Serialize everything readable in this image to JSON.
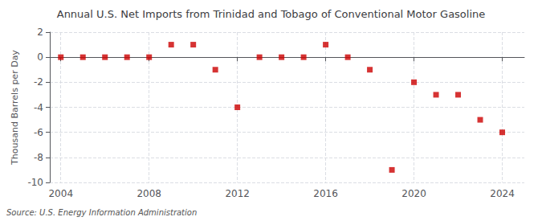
{
  "chart_data": {
    "type": "scatter",
    "title": "Annual U.S. Net Imports from Trinidad and Tobago of Conventional Motor Gasoline",
    "ylabel": "Thousand Barrels per Day",
    "annotation": "Source: U.S. Energy Information Administration",
    "x": [
      2004,
      2005,
      2006,
      2007,
      2008,
      2009,
      2010,
      2011,
      2012,
      2013,
      2014,
      2015,
      2016,
      2017,
      2018,
      2019,
      2020,
      2021,
      2022,
      2023,
      2024
    ],
    "values": [
      0,
      0,
      0,
      0,
      0,
      1,
      1,
      -1,
      -4,
      0,
      0,
      0,
      1,
      0,
      -1,
      -9,
      -2,
      -3,
      -3,
      -5,
      -6
    ],
    "color": "#cc0000",
    "marker": "square",
    "xlim": [
      2003.5,
      2025
    ],
    "xticks": [
      2004,
      2008,
      2012,
      2016,
      2020,
      2024
    ],
    "ylim": [
      -10,
      2
    ],
    "yticks": [
      -10,
      -8,
      -6,
      -4,
      -2,
      0,
      2
    ],
    "grid": true
  }
}
